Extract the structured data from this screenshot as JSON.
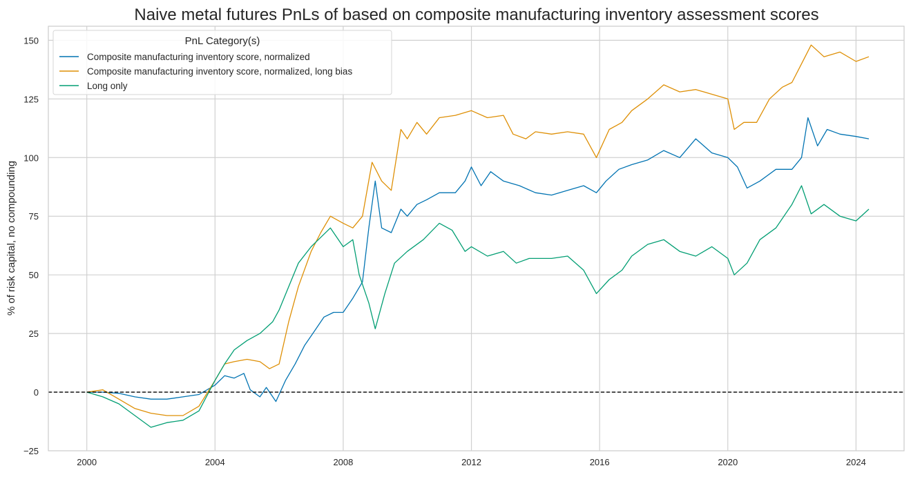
{
  "chart_data": {
    "type": "line",
    "title": "Naive metal futures PnLs of based on composite manufacturing inventory assessment scores",
    "xlabel": "",
    "ylabel": "% of risk capital, no compounding",
    "xlim": [
      1998.8,
      2025.5
    ],
    "ylim": [
      -25,
      156
    ],
    "xticks": [
      2000,
      2004,
      2008,
      2012,
      2016,
      2020,
      2024
    ],
    "xtick_labels": [
      "2000",
      "2004",
      "2008",
      "2012",
      "2016",
      "2020",
      "2024"
    ],
    "yticks": [
      -25,
      0,
      25,
      50,
      75,
      100,
      125,
      150
    ],
    "ytick_labels": [
      "−25",
      "0",
      "25",
      "50",
      "75",
      "100",
      "125",
      "150"
    ],
    "grid": true,
    "hline": {
      "y": 0,
      "style": "dashed",
      "color": "#000000"
    },
    "legend": {
      "title": "PnL Category(s)",
      "placement": "top-left"
    },
    "series": [
      {
        "name": "Composite manufacturing inventory score, normalized",
        "color": "#0173b2",
        "x": [
          2000,
          2000.5,
          2001,
          2001.5,
          2002,
          2002.5,
          2003,
          2003.5,
          2004,
          2004.3,
          2004.6,
          2004.9,
          2005.1,
          2005.4,
          2005.6,
          2005.9,
          2006.2,
          2006.5,
          2006.8,
          2007.1,
          2007.4,
          2007.7,
          2008,
          2008.3,
          2008.6,
          2008.8,
          2009.0,
          2009.2,
          2009.5,
          2009.8,
          2010,
          2010.3,
          2010.6,
          2011,
          2011.5,
          2011.8,
          2012,
          2012.3,
          2012.6,
          2013,
          2013.5,
          2014,
          2014.5,
          2015,
          2015.5,
          2015.9,
          2016.2,
          2016.6,
          2017,
          2017.5,
          2018,
          2018.5,
          2019,
          2019.5,
          2020,
          2020.3,
          2020.6,
          2021,
          2021.5,
          2022,
          2022.3,
          2022.5,
          2022.8,
          2023.1,
          2023.5,
          2024,
          2024.4
        ],
        "y": [
          0,
          0,
          -0.5,
          -2,
          -3,
          -3,
          -2,
          -1,
          3,
          7,
          6,
          8,
          1,
          -2,
          2,
          -4,
          5,
          12,
          20,
          26,
          32,
          34,
          34,
          40,
          47,
          70,
          90,
          70,
          68,
          78,
          75,
          80,
          82,
          85,
          85,
          90,
          96,
          88,
          94,
          90,
          88,
          85,
          84,
          86,
          88,
          85,
          90,
          95,
          97,
          99,
          103,
          100,
          108,
          102,
          100,
          96,
          87,
          90,
          95,
          95,
          100,
          117,
          105,
          112,
          110,
          109,
          108
        ]
      },
      {
        "name": "Composite manufacturing inventory score, normalized, long bias",
        "color": "#de8f05",
        "x": [
          2000,
          2000.5,
          2001,
          2001.5,
          2002,
          2002.5,
          2003,
          2003.5,
          2004,
          2004.3,
          2004.6,
          2005,
          2005.4,
          2005.7,
          2006,
          2006.3,
          2006.6,
          2007,
          2007.3,
          2007.6,
          2008,
          2008.3,
          2008.6,
          2008.9,
          2009.2,
          2009.5,
          2009.8,
          2010,
          2010.3,
          2010.6,
          2011,
          2011.5,
          2012,
          2012.5,
          2013,
          2013.3,
          2013.7,
          2014,
          2014.5,
          2015,
          2015.5,
          2015.9,
          2016.3,
          2016.7,
          2017,
          2017.5,
          2018,
          2018.5,
          2019,
          2019.5,
          2020,
          2020.2,
          2020.5,
          2020.9,
          2021.3,
          2021.7,
          2022,
          2022.3,
          2022.6,
          2023,
          2023.5,
          2024,
          2024.4
        ],
        "y": [
          0,
          1,
          -3,
          -7,
          -9,
          -10,
          -10,
          -6,
          5,
          12,
          13,
          14,
          13,
          10,
          12,
          30,
          45,
          60,
          68,
          75,
          72,
          70,
          75,
          98,
          90,
          86,
          112,
          108,
          115,
          110,
          117,
          118,
          120,
          117,
          118,
          110,
          108,
          111,
          110,
          111,
          110,
          100,
          112,
          115,
          120,
          125,
          131,
          128,
          129,
          127,
          125,
          112,
          115,
          115,
          125,
          130,
          132,
          140,
          148,
          143,
          145,
          141,
          143
        ]
      },
      {
        "name": "Long only",
        "color": "#029e73",
        "x": [
          2000,
          2000.5,
          2001,
          2001.5,
          2002,
          2002.5,
          2003,
          2003.5,
          2004,
          2004.3,
          2004.6,
          2005,
          2005.4,
          2005.8,
          2006,
          2006.3,
          2006.6,
          2007,
          2007.3,
          2007.6,
          2008,
          2008.3,
          2008.5,
          2008.8,
          2009,
          2009.3,
          2009.6,
          2010,
          2010.5,
          2011,
          2011.4,
          2011.8,
          2012,
          2012.5,
          2013,
          2013.4,
          2013.8,
          2014,
          2014.5,
          2015,
          2015.5,
          2015.9,
          2016.3,
          2016.7,
          2017,
          2017.5,
          2018,
          2018.5,
          2019,
          2019.5,
          2020,
          2020.2,
          2020.6,
          2021,
          2021.5,
          2022,
          2022.3,
          2022.6,
          2023,
          2023.5,
          2024,
          2024.4
        ],
        "y": [
          0,
          -2,
          -5,
          -10,
          -15,
          -13,
          -12,
          -8,
          5,
          12,
          18,
          22,
          25,
          30,
          35,
          45,
          55,
          62,
          66,
          70,
          62,
          65,
          50,
          38,
          27,
          42,
          55,
          60,
          65,
          72,
          69,
          60,
          62,
          58,
          60,
          55,
          57,
          57,
          57,
          58,
          52,
          42,
          48,
          52,
          58,
          63,
          65,
          60,
          58,
          62,
          57,
          50,
          55,
          65,
          70,
          80,
          88,
          76,
          80,
          75,
          73,
          78
        ]
      }
    ]
  }
}
